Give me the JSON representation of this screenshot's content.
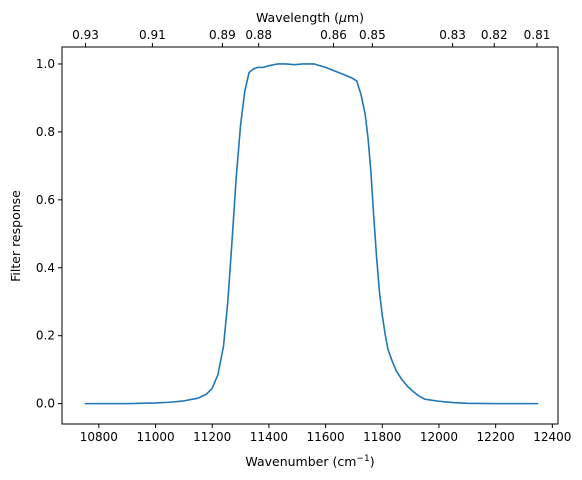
{
  "chart_data": {
    "type": "line",
    "title": "",
    "xlabel": "Wavenumber (cm",
    "xlabel_sup": "−1",
    "xlabel_close": ")",
    "ylabel": "Filter response",
    "top_axis_label": "Wavelength (",
    "top_axis_label_mu": "μ",
    "top_axis_label_unit": "m)",
    "xlim": [
      10670,
      12420
    ],
    "ylim": [
      -0.06,
      1.05
    ],
    "xticks": [
      10800,
      11000,
      11200,
      11400,
      11600,
      11800,
      12000,
      12200,
      12400
    ],
    "yticks": [
      0.0,
      0.2,
      0.4,
      0.6,
      0.8,
      1.0
    ],
    "ytick_labels": [
      "0.0",
      "0.2",
      "0.4",
      "0.6",
      "0.8",
      "1.0"
    ],
    "top_ticks": [
      {
        "label": "0.93",
        "wavenumber": 10753
      },
      {
        "label": "0.91",
        "wavenumber": 10989
      },
      {
        "label": "0.89",
        "wavenumber": 11236
      },
      {
        "label": "0.88",
        "wavenumber": 11364
      },
      {
        "label": "0.86",
        "wavenumber": 11628
      },
      {
        "label": "0.85",
        "wavenumber": 11765
      },
      {
        "label": "0.83",
        "wavenumber": 12048
      },
      {
        "label": "0.82",
        "wavenumber": 12195
      },
      {
        "label": "0.81",
        "wavenumber": 12346
      }
    ],
    "line_color": "#1f77b4",
    "grid": false,
    "series": [
      {
        "x": [
          10750,
          10900,
          11000,
          11050,
          11100,
          11150,
          11180,
          11200,
          11220,
          11240,
          11255,
          11270,
          11285,
          11300,
          11315,
          11330,
          11345,
          11360,
          11380,
          11400,
          11430,
          11460,
          11490,
          11520,
          11560,
          11600,
          11630,
          11660,
          11690,
          11710,
          11725,
          11740,
          11750,
          11760,
          11770,
          11780,
          11790,
          11800,
          11810,
          11820,
          11835,
          11850,
          11870,
          11890,
          11910,
          11930,
          11950,
          12000,
          12050,
          12100,
          12200,
          12350
        ],
        "y": [
          0.0,
          0.0,
          0.002,
          0.004,
          0.008,
          0.016,
          0.028,
          0.045,
          0.085,
          0.17,
          0.3,
          0.48,
          0.67,
          0.82,
          0.92,
          0.975,
          0.985,
          0.99,
          0.99,
          0.995,
          1.0,
          1.0,
          0.998,
          1.0,
          1.0,
          0.99,
          0.98,
          0.97,
          0.96,
          0.95,
          0.91,
          0.85,
          0.78,
          0.68,
          0.55,
          0.43,
          0.33,
          0.26,
          0.205,
          0.16,
          0.125,
          0.095,
          0.07,
          0.05,
          0.035,
          0.022,
          0.013,
          0.007,
          0.003,
          0.001,
          0.0,
          0.0
        ]
      }
    ]
  }
}
